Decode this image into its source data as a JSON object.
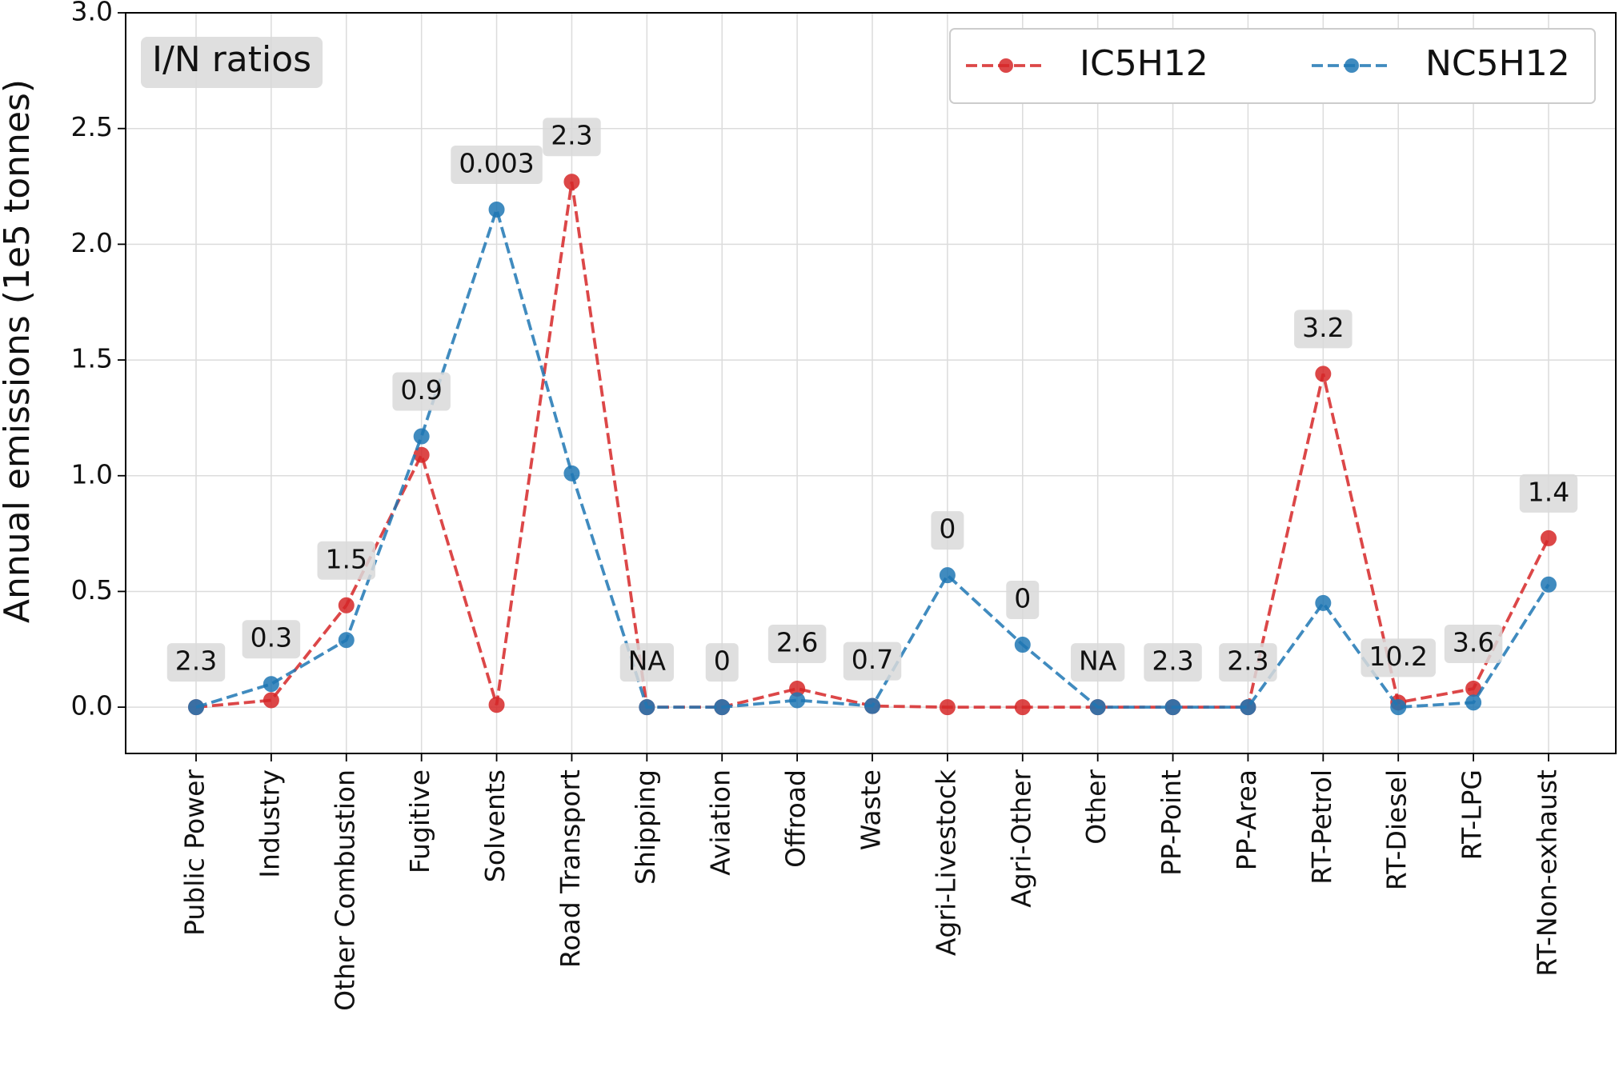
{
  "chart_data": {
    "type": "line",
    "ylabel": "Annual emissions (1e5 tonnes)",
    "box_label": "I/N ratios",
    "categories": [
      "Public Power",
      "Industry",
      "Other Combustion",
      "Fugitive",
      "Solvents",
      "Road Transport",
      "Shipping",
      "Aviation",
      "Offroad",
      "Waste",
      "Agri-Livestock",
      "Agri-Other",
      "Other",
      "PP-Point",
      "PP-Area",
      "RT-Petrol",
      "RT-Diesel",
      "RT-LPG",
      "RT-Non-exhaust"
    ],
    "series": [
      {
        "name": "IC5H12",
        "color": "#d62728",
        "values": [
          0.0,
          0.03,
          0.44,
          1.09,
          0.01,
          2.27,
          0.0,
          0.0,
          0.08,
          0.005,
          0.0,
          0.0,
          0.0,
          0.0,
          0.0,
          1.44,
          0.02,
          0.08,
          0.73
        ]
      },
      {
        "name": "NC5H12",
        "color": "#1f77b4",
        "values": [
          0.0,
          0.1,
          0.29,
          1.17,
          2.15,
          1.01,
          0.0,
          0.0,
          0.03,
          0.005,
          0.57,
          0.27,
          0.0,
          0.0,
          0.0,
          0.45,
          0.0,
          0.02,
          0.53
        ]
      }
    ],
    "annotations": [
      "2.3",
      "0.3",
      "1.5",
      "0.9",
      "0.003",
      "2.3",
      "NA",
      "0",
      "2.6",
      "0.7",
      "0",
      "0",
      "NA",
      "2.3",
      "2.3",
      "3.2",
      "10.2",
      "3.6",
      "1.4"
    ],
    "ylim": [
      -0.2,
      3.0
    ],
    "yticks": [
      {
        "value": 0,
        "label": "0.0"
      },
      {
        "value": 0.5,
        "label": "0.5"
      },
      {
        "value": 1,
        "label": "1.0"
      },
      {
        "value": 1.5,
        "label": "1.5"
      },
      {
        "value": 2,
        "label": "2.0"
      },
      {
        "value": 2.5,
        "label": "2.5"
      },
      {
        "value": 3,
        "label": "3.0"
      }
    ],
    "grid": true,
    "legend": "upper right"
  }
}
